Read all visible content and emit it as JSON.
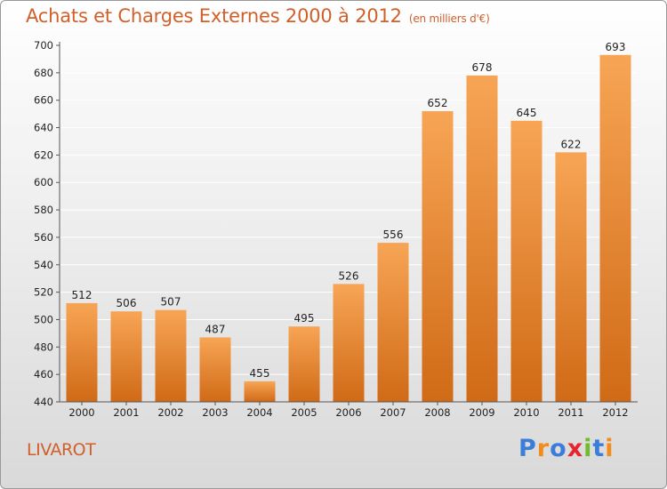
{
  "header": {
    "title": "Achats et Charges Externes 2000 à 2012",
    "subtitle": "(en milliers d'€)"
  },
  "footer": {
    "place": "LIVAROT",
    "logo": "Proxiti"
  },
  "colors": {
    "title": "#d0602a",
    "bar_top": "#f7a555",
    "bar_bottom": "#d06a16",
    "grid": "#ffffff",
    "logo": [
      "#3b7dd8",
      "#f28c1a",
      "#3b7dd8",
      "#e6262e",
      "#6cbf2a",
      "#3b7dd8",
      "#f28c1a"
    ]
  },
  "chart_data": {
    "type": "bar",
    "title": "Achats et Charges Externes 2000 à 2012",
    "subtitle": "(en milliers d'€)",
    "xlabel": "",
    "ylabel": "",
    "categories": [
      "2000",
      "2001",
      "2002",
      "2003",
      "2004",
      "2005",
      "2006",
      "2007",
      "2008",
      "2009",
      "2010",
      "2011",
      "2012"
    ],
    "values": [
      512,
      506,
      507,
      487,
      455,
      495,
      526,
      556,
      652,
      678,
      645,
      622,
      693
    ],
    "ylim": [
      440,
      700
    ],
    "yticks": [
      440,
      460,
      480,
      500,
      520,
      540,
      560,
      580,
      600,
      620,
      640,
      660,
      680,
      700
    ],
    "grid": true,
    "data_labels": true
  }
}
